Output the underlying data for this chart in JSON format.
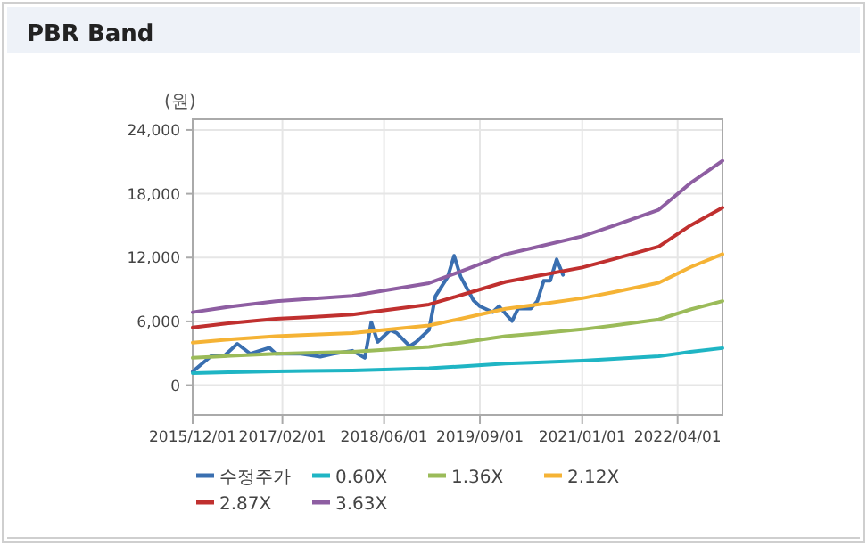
{
  "chart_data": {
    "type": "line",
    "title": "PBR Band",
    "ylabel": "(원)",
    "x": [
      "2015-12-01",
      "2016-06",
      "2017-01",
      "2017-06",
      "2018-01",
      "2018-06",
      "2019-01",
      "2019-06",
      "2020-01",
      "2020-06",
      "2021-01",
      "2021-06",
      "2022-01",
      "2022-06",
      "2022-11"
    ],
    "xlim": [
      "2015-12-01",
      "2022-11-01"
    ],
    "xticks": [
      {
        "value": "2015-12-01",
        "label": "2015/12/01"
      },
      {
        "value": "2017-02-01",
        "label": "2017/02/01"
      },
      {
        "value": "2018-06-01",
        "label": "2018/06/01"
      },
      {
        "value": "2019-09-01",
        "label": "2019/09/01"
      },
      {
        "value": "2021-01-01",
        "label": "2021/01/01"
      },
      {
        "value": "2022-04-01",
        "label": "2022/04/01"
      }
    ],
    "ylim": [
      -2800,
      25000
    ],
    "yticks": [
      {
        "value": 0,
        "label": "0"
      },
      {
        "value": 6000,
        "label": "6,000"
      },
      {
        "value": 12000,
        "label": "12,000"
      },
      {
        "value": 18000,
        "label": "18,000"
      },
      {
        "value": 24000,
        "label": "24,000"
      }
    ],
    "grid": true,
    "legend": "bottom",
    "marker": "none",
    "series": [
      {
        "name": "수정주가",
        "color": "#3a6fb0",
        "x": [
          "2015-12-01",
          "2016-03",
          "2016-05",
          "2016-07",
          "2016-09",
          "2016-12",
          "2017-01",
          "2017-05",
          "2017-08",
          "2017-10",
          "2018-01",
          "2018-03",
          "2018-04",
          "2018-05",
          "2018-07",
          "2018-08",
          "2018-10",
          "2018-11",
          "2019-01",
          "2019-02",
          "2019-04",
          "2019-05",
          "2019-06",
          "2019-08",
          "2019-09",
          "2019-11",
          "2019-12",
          "2020-02",
          "2020-03",
          "2020-05",
          "2020-06",
          "2020-07",
          "2020-08",
          "2020-09",
          "2020-10"
        ],
        "values": [
          1280,
          2790,
          2790,
          3900,
          2960,
          3520,
          2960,
          2960,
          2680,
          2960,
          3240,
          2570,
          5920,
          4070,
          5190,
          4900,
          3680,
          4070,
          5190,
          8370,
          10210,
          12170,
          10210,
          7980,
          7420,
          6870,
          7420,
          6030,
          7200,
          7200,
          7920,
          9820,
          9820,
          11830,
          10380
        ]
      },
      {
        "name": "0.60X",
        "color": "#1fb5c4",
        "values": [
          1130,
          1220,
          1310,
          1340,
          1390,
          1470,
          1590,
          1770,
          2030,
          2150,
          2310,
          2480,
          2730,
          3140,
          3490
        ]
      },
      {
        "name": "1.36X",
        "color": "#9bbb59",
        "values": [
          2570,
          2770,
          2960,
          3040,
          3150,
          3330,
          3600,
          4010,
          4610,
          4870,
          5250,
          5620,
          6180,
          7120,
          7910
        ]
      },
      {
        "name": "2.12X",
        "color": "#f5b335",
        "values": [
          4010,
          4320,
          4610,
          4730,
          4910,
          5200,
          5610,
          6250,
          7180,
          7590,
          8180,
          8760,
          9640,
          11100,
          12320
        ]
      },
      {
        "name": "2.87X",
        "color": "#c0302f",
        "values": [
          5420,
          5850,
          6250,
          6400,
          6640,
          7040,
          7590,
          8460,
          9720,
          10280,
          11070,
          11860,
          13040,
          15020,
          16680
        ]
      },
      {
        "name": "3.63X",
        "color": "#8e5ea2",
        "values": [
          6860,
          7400,
          7900,
          8100,
          8400,
          8900,
          9600,
          10700,
          12300,
          13000,
          14000,
          15000,
          16500,
          19000,
          21100
        ]
      }
    ]
  }
}
